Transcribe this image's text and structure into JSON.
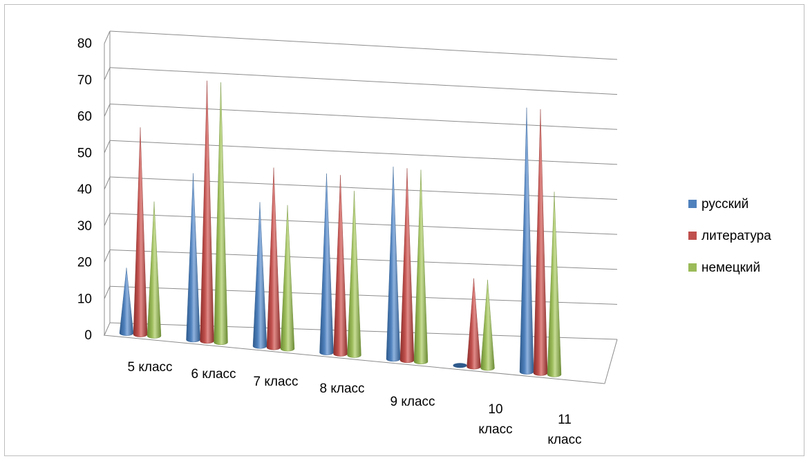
{
  "chart_data": {
    "type": "bar",
    "bar_shape": "cone",
    "projection": "3d",
    "categories": [
      [
        "5 класс"
      ],
      [
        "6 класс"
      ],
      [
        "7 класс"
      ],
      [
        "8 класс"
      ],
      [
        "9 класс"
      ],
      [
        "10",
        "класс"
      ],
      [
        "11",
        "класс"
      ]
    ],
    "series": [
      {
        "name": "русский",
        "color": "#4F81BD",
        "dark": "#2E5A8C",
        "light": "#8FB2DE",
        "values": [
          18,
          46,
          40,
          50,
          54,
          0,
          75
        ]
      },
      {
        "name": "литература",
        "color": "#C0504D",
        "dark": "#8C2E2B",
        "light": "#E08B88",
        "values": [
          57,
          72,
          50,
          50,
          54,
          25,
          75
        ]
      },
      {
        "name": "немецкий",
        "color": "#9BBB59",
        "dark": "#6A8A33",
        "light": "#C6DC94",
        "values": [
          37,
          72,
          40,
          46,
          54,
          25,
          52
        ]
      }
    ],
    "y_ticks": [
      "0",
      "10",
      "20",
      "30",
      "40",
      "50",
      "60",
      "70",
      "80"
    ],
    "ylim": [
      0,
      80
    ],
    "grid": true,
    "legend": "right"
  }
}
